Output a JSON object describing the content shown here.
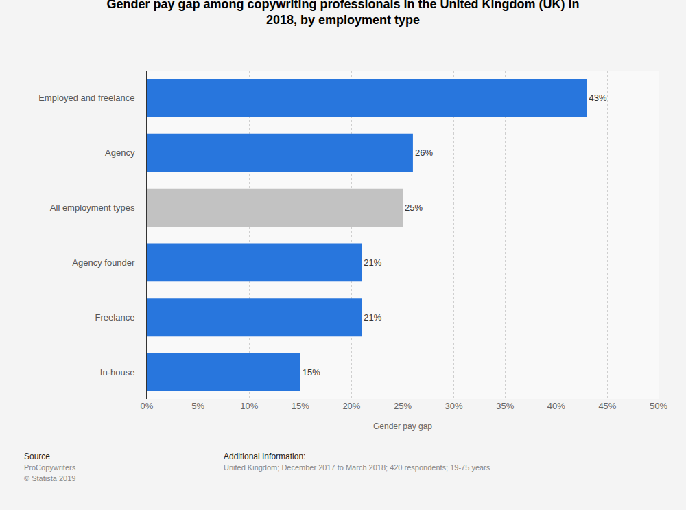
{
  "chart_data": {
    "type": "bar",
    "orientation": "horizontal",
    "title": "Gender pay gap among copywriting professionals in the United Kingdom (UK) in 2018, by employment type",
    "categories": [
      "Employed and freelance",
      "Agency",
      "All employment types",
      "Agency founder",
      "Freelance",
      "In-house"
    ],
    "values": [
      43,
      26,
      25,
      21,
      21,
      15
    ],
    "value_labels": [
      "43%",
      "26%",
      "25%",
      "21%",
      "21%",
      "15%"
    ],
    "colors": [
      "#2876dd",
      "#2876dd",
      "#c2c2c2",
      "#2876dd",
      "#2876dd",
      "#2876dd"
    ],
    "data_labels": true,
    "xlabel": "Gender pay gap",
    "xlim": [
      0,
      50
    ],
    "xticks": [
      {
        "value": 0,
        "label": "0%"
      },
      {
        "value": 5,
        "label": "5%"
      },
      {
        "value": 10,
        "label": "10%"
      },
      {
        "value": 15,
        "label": "15%"
      },
      {
        "value": 20,
        "label": "20%"
      },
      {
        "value": 25,
        "label": "25%"
      },
      {
        "value": 30,
        "label": "30%"
      },
      {
        "value": 35,
        "label": "35%"
      },
      {
        "value": 40,
        "label": "40%"
      },
      {
        "value": 45,
        "label": "45%"
      },
      {
        "value": 50,
        "label": "50%"
      }
    ],
    "grid": true,
    "annotations": [
      "Source",
      "ProCopywriters",
      "© Statista 2019",
      "Additional Information:",
      "United Kingdom; December 2017 to March 2018; 420 respondents; 19-75 years"
    ]
  }
}
